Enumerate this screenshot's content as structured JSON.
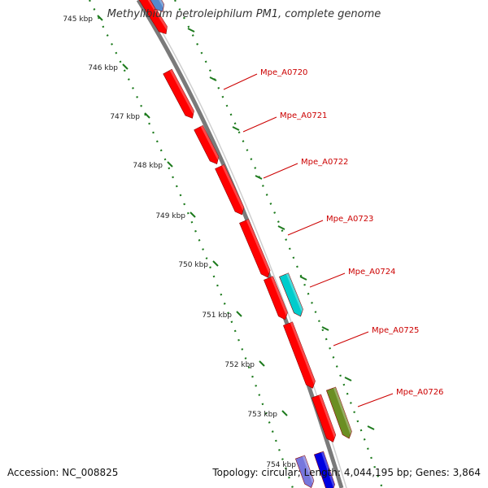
{
  "title": "Methylibium petroleiphilum PM1, complete genome",
  "accession_text": "Accession: NC_008825",
  "summary_text": "Topology: circular; Length: 4,044,195 bp; Genes: 3,864",
  "ruler": {
    "ticks": [
      "745 kbp",
      "746 kbp",
      "747 kbp",
      "748 kbp",
      "749 kbp",
      "750 kbp",
      "751 kbp",
      "752 kbp",
      "753 kbp",
      "754 kbp"
    ]
  },
  "colors": {
    "backbone": "#7a7a7a",
    "ruler": "#1c7a1c",
    "gene_forward": "#ff0000",
    "gene_blue": "#0000e0",
    "gene_lightblue": "#5588cc",
    "gene_cyan": "#00cccc",
    "gene_olive": "#6b8e23",
    "gene_periwinkle": "#7777dd",
    "label": "#cc0000"
  },
  "genes": [
    {
      "label": "Mpe_A0720"
    },
    {
      "label": "Mpe_A0721"
    },
    {
      "label": "Mpe_A0722"
    },
    {
      "label": "Mpe_A0723"
    },
    {
      "label": "Mpe_A0724"
    },
    {
      "label": "Mpe_A0725"
    },
    {
      "label": "Mpe_A0726"
    }
  ]
}
